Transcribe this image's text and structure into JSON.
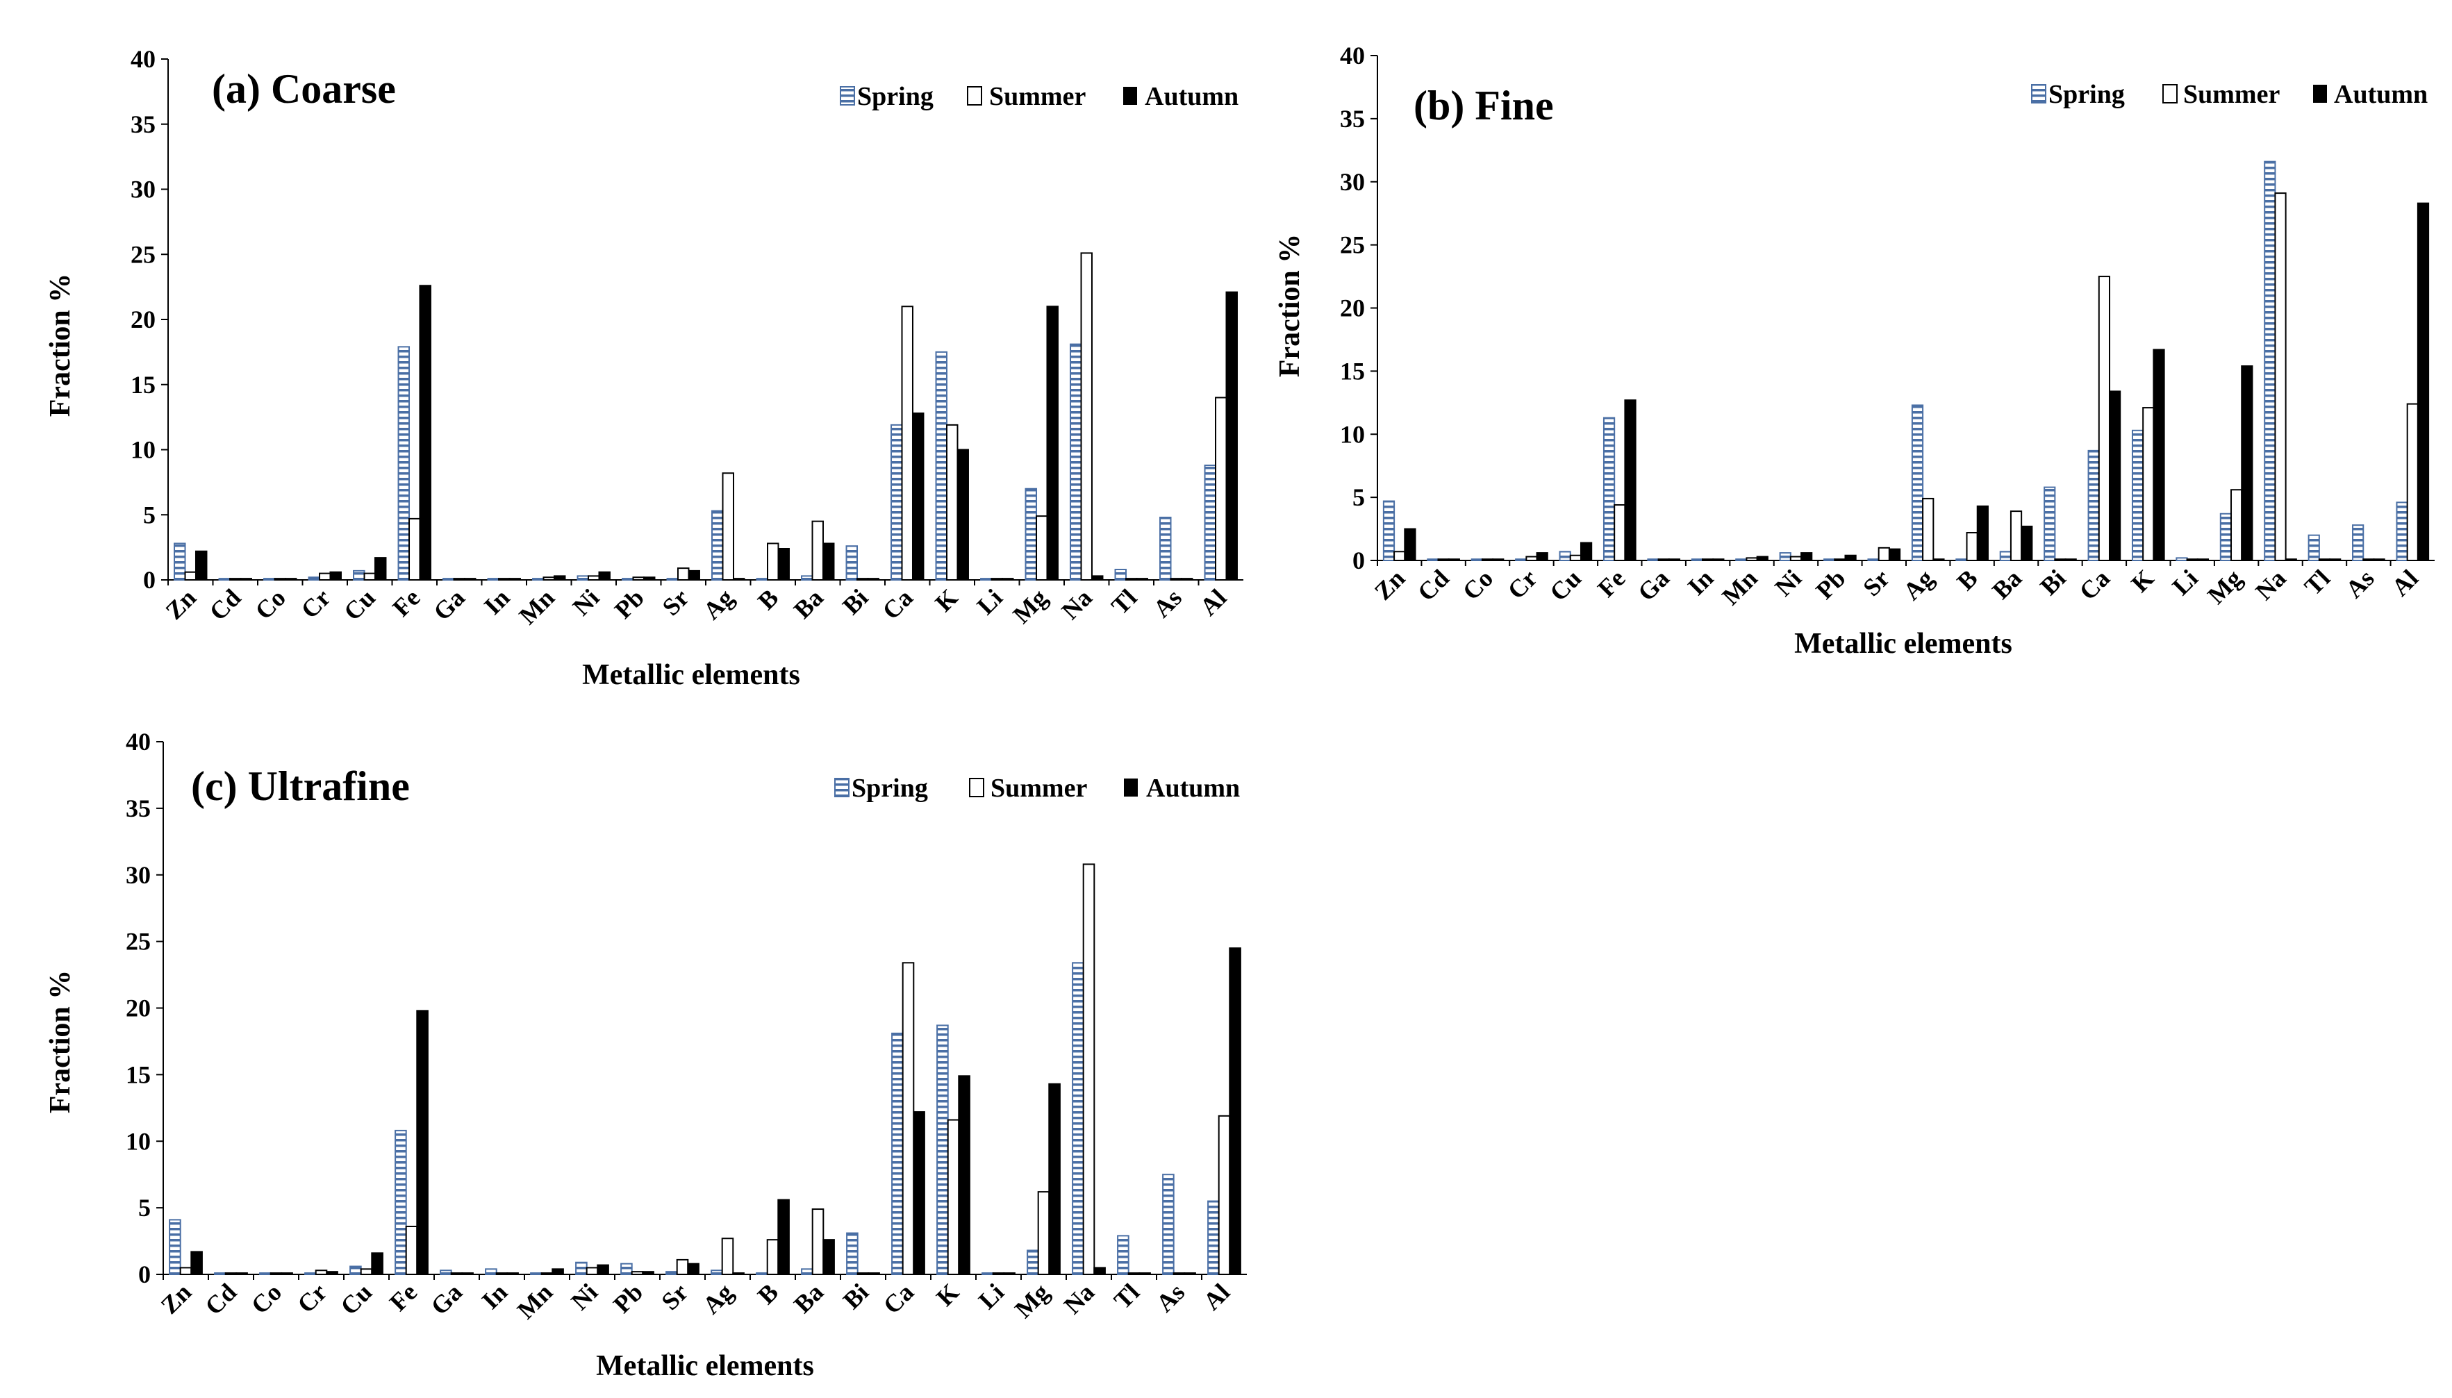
{
  "chart_data": [
    {
      "type": "bar",
      "title": "(a) Coarse",
      "xlabel": "Metallic elements",
      "ylabel": "Fraction %",
      "ylim": [
        0,
        40
      ],
      "yticks": [
        "0",
        "5",
        "10",
        "15",
        "20",
        "25",
        "30",
        "35",
        "40"
      ],
      "legend_position": "top-right",
      "categories": [
        "Zn",
        "Cd",
        "Co",
        "Cr",
        "Cu",
        "Fe",
        "Ga",
        "In",
        "Mn",
        "Ni",
        "Pb",
        "Sr",
        "Ag",
        "B",
        "Ba",
        "Bi",
        "Ca",
        "K",
        "Li",
        "Mg",
        "Na",
        "Tl",
        "As",
        "Al"
      ],
      "series": [
        {
          "name": "Spring",
          "values": [
            2.8,
            0.1,
            0.1,
            0.2,
            0.7,
            17.9,
            0.1,
            0.1,
            0.1,
            0.3,
            0.1,
            0.1,
            5.3,
            0.1,
            0.3,
            2.6,
            11.9,
            17.5,
            0.1,
            7.0,
            18.1,
            0.8,
            4.8,
            8.8
          ]
        },
        {
          "name": "Summer",
          "values": [
            0.6,
            0.1,
            0.1,
            0.5,
            0.5,
            4.7,
            0.1,
            0.1,
            0.2,
            0.3,
            0.2,
            0.9,
            8.2,
            2.8,
            4.5,
            0.1,
            21.0,
            11.9,
            0.1,
            4.9,
            25.1,
            0.1,
            0.1,
            14.0
          ]
        },
        {
          "name": "Autumn",
          "values": [
            2.2,
            0.1,
            0.1,
            0.6,
            1.7,
            22.6,
            0.1,
            0.1,
            0.3,
            0.6,
            0.2,
            0.7,
            0.1,
            2.4,
            2.8,
            0.1,
            12.8,
            10.0,
            0.1,
            21.0,
            0.3,
            0.1,
            0.1,
            22.1
          ]
        }
      ]
    },
    {
      "type": "bar",
      "title": "(b) Fine",
      "xlabel": "Metallic elements",
      "ylabel": "Fraction %",
      "ylim": [
        0,
        40
      ],
      "yticks": [
        "0",
        "5",
        "10",
        "15",
        "20",
        "25",
        "30",
        "35",
        "40"
      ],
      "legend_position": "top-right",
      "categories": [
        "Zn",
        "Cd",
        "Co",
        "Cr",
        "Cu",
        "Fe",
        "Ga",
        "In",
        "Mn",
        "Ni",
        "Pb",
        "Sr",
        "Ag",
        "B",
        "Ba",
        "Bi",
        "Ca",
        "K",
        "Li",
        "Mg",
        "Na",
        "Tl",
        "As",
        "Al"
      ],
      "series": [
        {
          "name": "Spring",
          "values": [
            4.7,
            0.1,
            0.1,
            0.1,
            0.7,
            11.3,
            0.1,
            0.1,
            0.1,
            0.6,
            0.1,
            0.1,
            12.3,
            0.1,
            0.7,
            5.8,
            8.7,
            10.3,
            0.2,
            3.7,
            31.6,
            2.0,
            2.8,
            4.6
          ]
        },
        {
          "name": "Summer",
          "values": [
            0.7,
            0.1,
            0.1,
            0.3,
            0.4,
            4.4,
            0.1,
            0.1,
            0.2,
            0.3,
            0.1,
            1.0,
            4.9,
            2.2,
            3.9,
            0.1,
            22.5,
            12.1,
            0.1,
            5.6,
            29.1,
            0.1,
            0.1,
            12.4
          ]
        },
        {
          "name": "Autumn",
          "values": [
            2.5,
            0.1,
            0.1,
            0.6,
            1.4,
            12.7,
            0.1,
            0.1,
            0.3,
            0.6,
            0.4,
            0.9,
            0.1,
            4.3,
            2.7,
            0.1,
            13.4,
            16.7,
            0.1,
            15.4,
            0.1,
            0.1,
            0.1,
            28.3
          ]
        }
      ]
    },
    {
      "type": "bar",
      "title": "(c) Ultrafine",
      "xlabel": "Metallic elements",
      "ylabel": "Fraction %",
      "ylim": [
        0,
        40
      ],
      "yticks": [
        "0",
        "5",
        "10",
        "15",
        "20",
        "25",
        "30",
        "35",
        "40"
      ],
      "legend_position": "top-right",
      "categories": [
        "Zn",
        "Cd",
        "Co",
        "Cr",
        "Cu",
        "Fe",
        "Ga",
        "In",
        "Mn",
        "Ni",
        "Pb",
        "Sr",
        "Ag",
        "B",
        "Ba",
        "Bi",
        "Ca",
        "K",
        "Li",
        "Mg",
        "Na",
        "Tl",
        "As",
        "Al"
      ],
      "series": [
        {
          "name": "Spring",
          "values": [
            4.1,
            0.1,
            0.1,
            0.1,
            0.6,
            10.8,
            0.3,
            0.4,
            0.1,
            0.9,
            0.8,
            0.2,
            0.3,
            0.1,
            0.4,
            3.1,
            18.1,
            18.7,
            0.1,
            1.8,
            23.4,
            2.9,
            7.5,
            5.5
          ]
        },
        {
          "name": "Summer",
          "values": [
            0.5,
            0.1,
            0.1,
            0.3,
            0.4,
            3.6,
            0.1,
            0.1,
            0.1,
            0.5,
            0.2,
            1.1,
            2.7,
            2.6,
            4.9,
            0.1,
            23.4,
            11.6,
            0.1,
            6.2,
            30.8,
            0.1,
            0.1,
            11.9
          ]
        },
        {
          "name": "Autumn",
          "values": [
            1.7,
            0.1,
            0.1,
            0.2,
            1.6,
            19.8,
            0.1,
            0.1,
            0.4,
            0.7,
            0.2,
            0.8,
            0.1,
            5.6,
            2.6,
            0.1,
            12.2,
            14.9,
            0.1,
            14.3,
            0.5,
            0.1,
            0.1,
            24.5
          ]
        }
      ]
    }
  ],
  "colors": {
    "spring_stripe": "#4a6fa5",
    "spring_fill": "#ffffff",
    "summer_fill": "#ffffff",
    "autumn_fill": "#000000",
    "axis": "#000000"
  }
}
